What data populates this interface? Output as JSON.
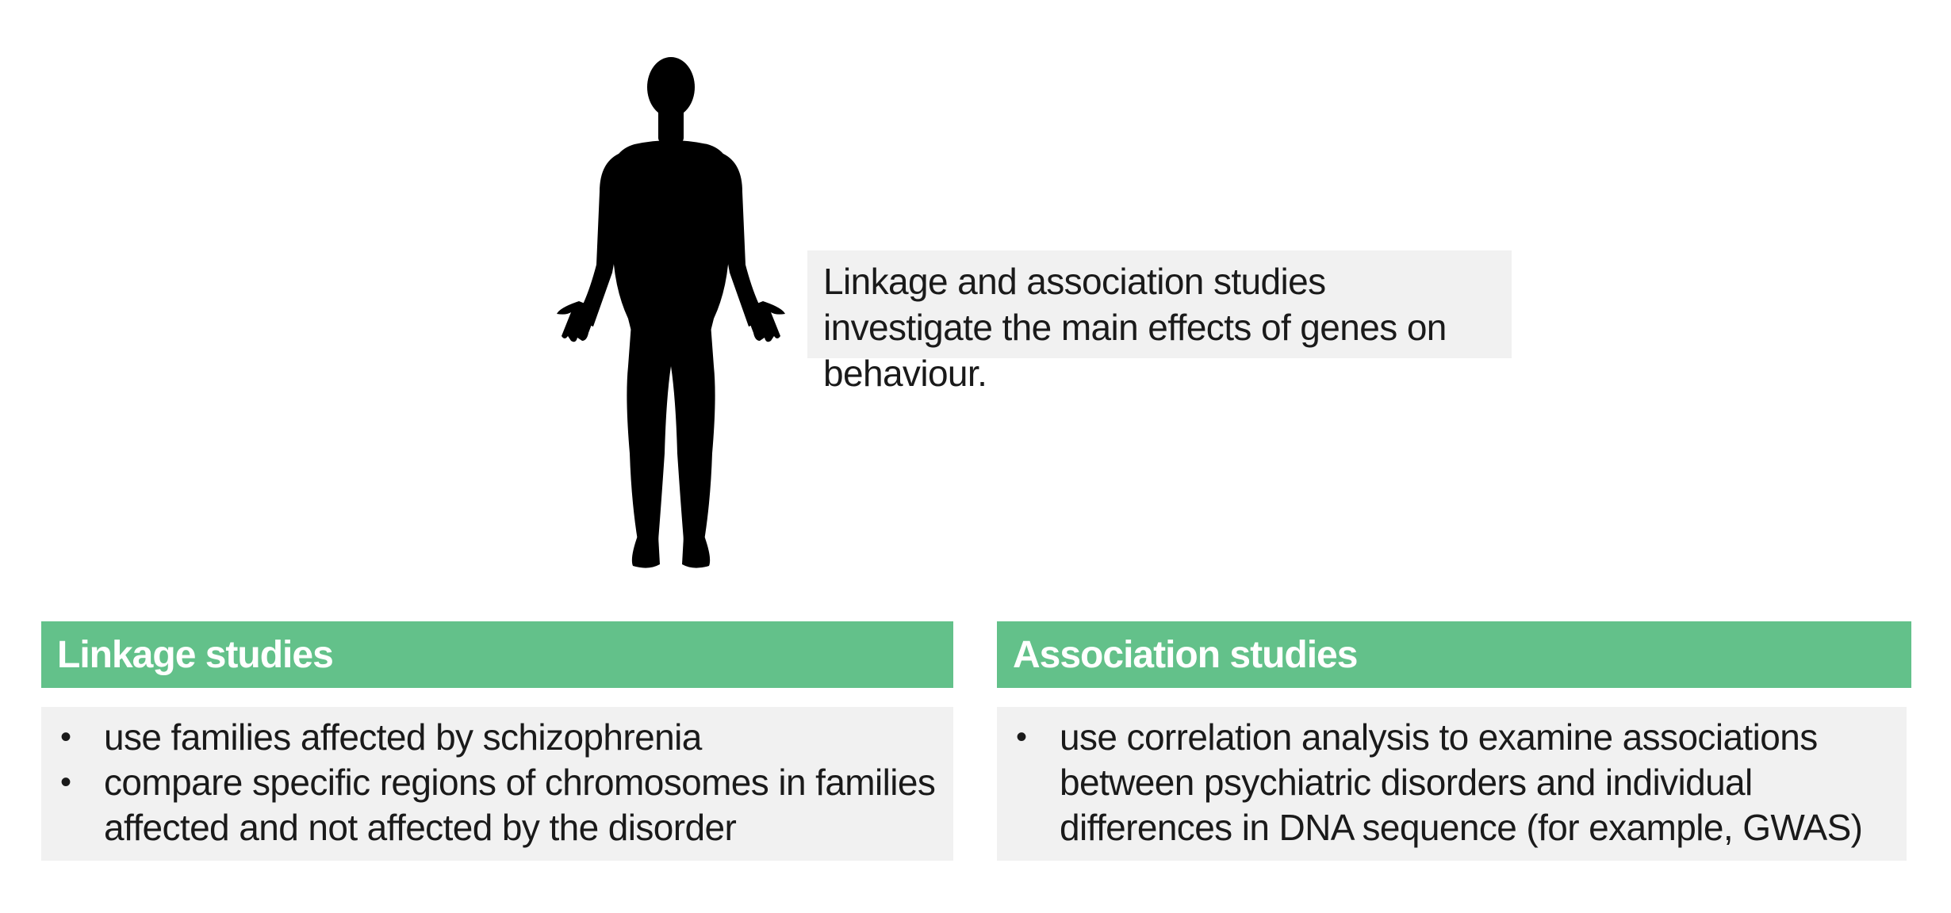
{
  "figure": {
    "icon": "human-silhouette-icon",
    "color": "#000000"
  },
  "callout": {
    "text": "Linkage and association studies investigate the main effects of genes on behaviour."
  },
  "colors": {
    "header_bg": "#63c18a",
    "panel_bg": "#f1f1f1"
  },
  "linkage": {
    "title": "Linkage studies",
    "items": [
      "use families affected by schizophrenia",
      "compare specific regions of chromosomes in families affected and not affected by the disorder"
    ]
  },
  "association": {
    "title": "Association studies",
    "items": [
      "use correlation analysis to examine associations between psychiatric disorders and individual differences in DNA sequence (for example, GWAS)"
    ]
  }
}
